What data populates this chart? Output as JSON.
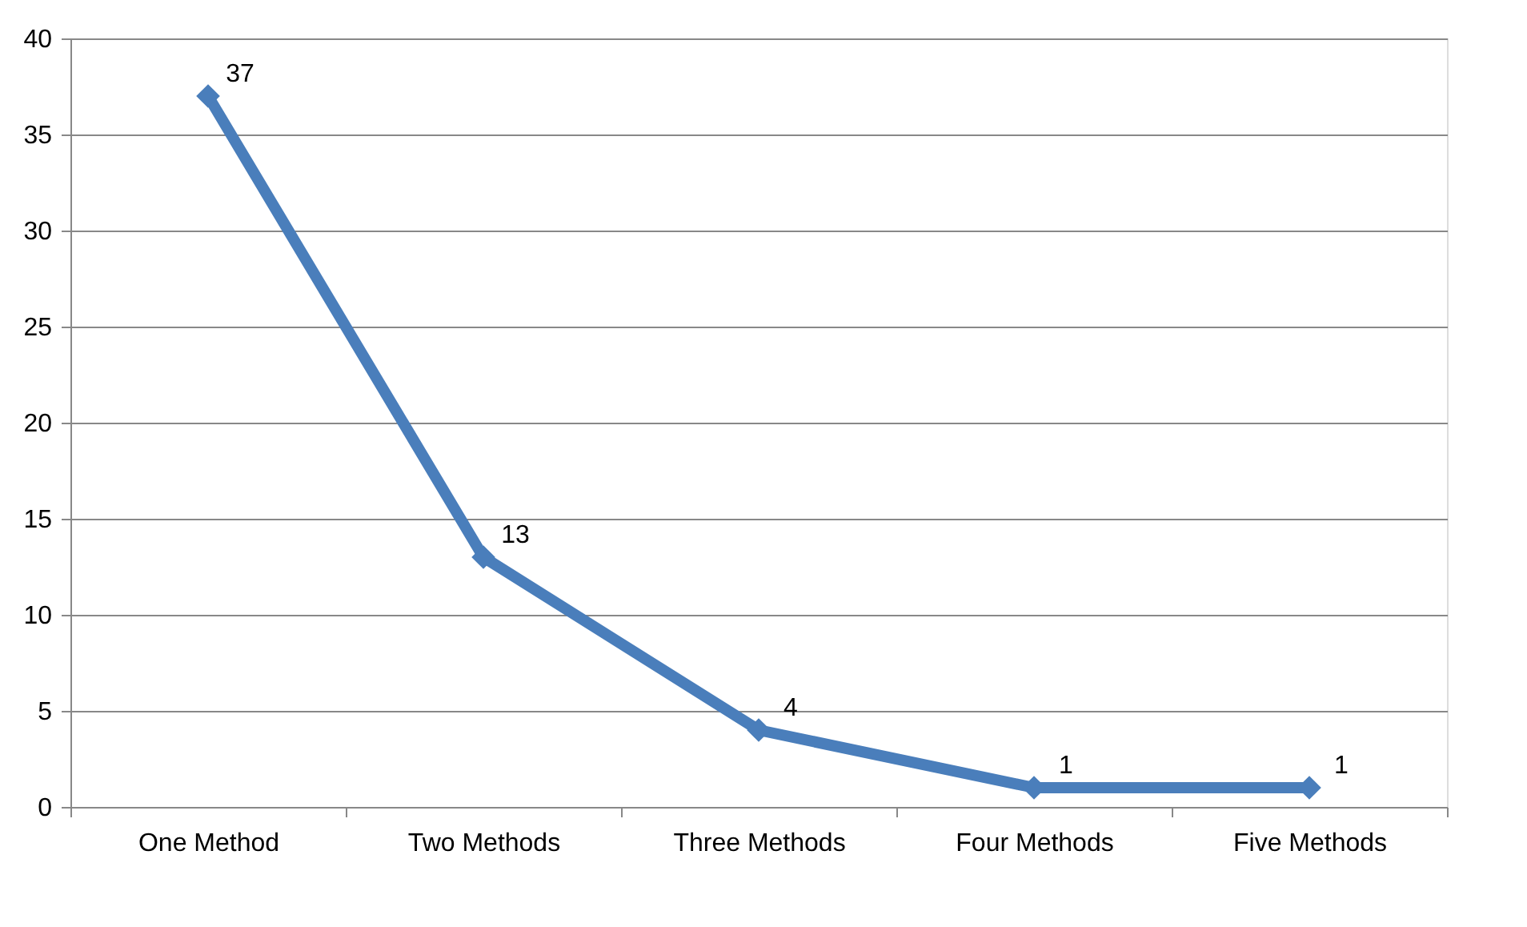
{
  "chart_data": {
    "type": "line",
    "categories": [
      "One Method",
      "Two Methods",
      "Three Methods",
      "Four Methods",
      "Five Methods"
    ],
    "series": [
      {
        "color": "#4a7ebb",
        "values": [
          37,
          13,
          4,
          1,
          1
        ]
      }
    ],
    "ylim": [
      0,
      40
    ],
    "yticks": [
      0,
      5,
      10,
      15,
      20,
      25,
      30,
      35,
      40
    ],
    "grid": "y",
    "marker": "diamond",
    "data_labels": true
  }
}
